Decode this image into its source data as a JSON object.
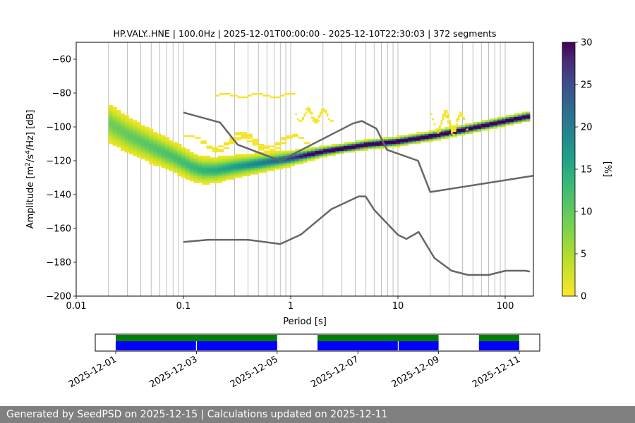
{
  "footer": {
    "text": "Generated by SeedPSD on 2025-12-15 | Calculations updated on 2025-12-11"
  },
  "chart_data": [
    {
      "type": "heatmap",
      "title": "HP.VALY..HNE | 100.0Hz | 2025-12-01T00:00:00 - 2025-12-10T22:30:03 | 372 segments",
      "xlabel": "Period [s]",
      "ylabel_base": "Amplitude [m",
      "ylabel_text": "Amplitude [m²/s⁴/Hz] [dB]",
      "x_scale": "log",
      "xlim": [
        0.01,
        170
      ],
      "ylim": [
        -200,
        -50
      ],
      "x_ticks": [
        0.01,
        0.1,
        1,
        10,
        100
      ],
      "x_tick_labels": [
        "0.01",
        "0.1",
        "1",
        "10",
        "100"
      ],
      "y_ticks": [
        -200,
        -180,
        -160,
        -140,
        -120,
        -100,
        -80,
        -60
      ],
      "y_tick_labels": [
        "−200",
        "−180",
        "−160",
        "−140",
        "−120",
        "−100",
        "−80",
        "−60"
      ],
      "grid": "x-only (major and minor periods)",
      "colormap": "viridis (reversed)",
      "colorbar": {
        "label": "[%]",
        "range": [
          0,
          30
        ],
        "ticks": [
          0,
          5,
          10,
          15,
          20,
          25,
          30
        ],
        "tick_labels": [
          "0",
          "5",
          "10",
          "15",
          "20",
          "25",
          "30"
        ]
      },
      "psd_mode": {
        "period": [
          0.02,
          0.03,
          0.05,
          0.08,
          0.12,
          0.15,
          0.2,
          0.3,
          0.5,
          1,
          2,
          5,
          10,
          20,
          50,
          100,
          170
        ],
        "amplitude_db": [
          -98,
          -105,
          -112,
          -118,
          -124,
          -126,
          -126,
          -124,
          -122,
          -119,
          -115,
          -111,
          -109,
          -106,
          -101,
          -97,
          -94
        ]
      },
      "nhnm_curve": {
        "period": [
          0.1,
          0.22,
          0.32,
          0.8,
          3.8,
          4.6,
          6.3,
          7.9,
          15.4,
          20,
          354.8
        ],
        "amplitude_db": [
          -91.5,
          -97.4,
          -110.5,
          -120,
          -98,
          -96.5,
          -101,
          -113.5,
          -120,
          -138.5,
          -126
        ]
      },
      "nlnm_curve": {
        "period": [
          0.1,
          0.17,
          0.4,
          0.8,
          1.24,
          2.4,
          4.3,
          5.0,
          6.0,
          10,
          12,
          15.6,
          21.9,
          31.6,
          45,
          70,
          101,
          154,
          170
        ],
        "amplitude_db": [
          -168,
          -166.7,
          -166.7,
          -169.2,
          -163.7,
          -148.6,
          -141.1,
          -141.1,
          -149,
          -163.8,
          -166.2,
          -162.1,
          -177.5,
          -185,
          -187.5,
          -187.5,
          -185,
          -185,
          -185.5
        ]
      },
      "outlier_bands": [
        {
          "period_range": [
            0.2,
            1.1
          ],
          "amplitude_db_range": [
            -83,
            -80
          ]
        },
        {
          "period_range": [
            0.1,
            1.5
          ],
          "amplitude_db_range": [
            -115,
            -104
          ]
        },
        {
          "period_range": [
            20,
            45
          ],
          "amplitude_db_range": [
            -104,
            -91
          ]
        },
        {
          "period_range": [
            1.1,
            2.5
          ],
          "amplitude_db_range": [
            -98,
            -89
          ]
        }
      ]
    },
    {
      "type": "timeline",
      "x_ticks": [
        "2025-12-01",
        "2025-12-03",
        "2025-12-05",
        "2025-12-07",
        "2025-12-09",
        "2025-12-11"
      ],
      "data_gaps": [
        {
          "start": "2025-12-01",
          "end": "2025-12-05"
        },
        {
          "start": "2025-12-06",
          "end": "2025-12-09"
        },
        {
          "start": "2025-12-10",
          "end": "2025-12-11"
        }
      ],
      "colors": {
        "availability": "#008000",
        "segments": "#0000ff"
      }
    }
  ]
}
